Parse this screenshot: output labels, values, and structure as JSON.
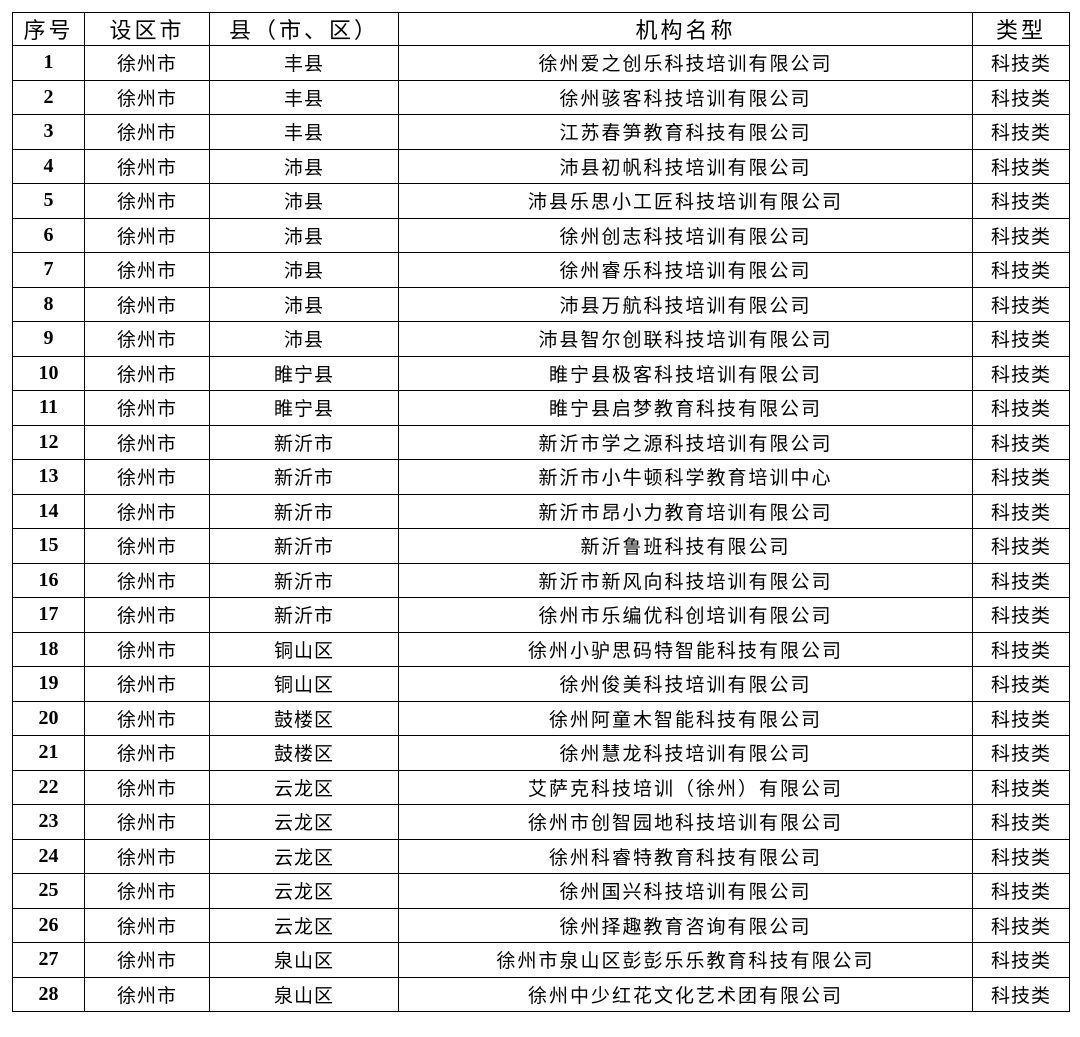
{
  "table": {
    "headers": [
      "序号",
      "设区市",
      "县（市、区）",
      "机构名称",
      "类型"
    ],
    "rows": [
      [
        "1",
        "徐州市",
        "丰县",
        "徐州爱之创乐科技培训有限公司",
        "科技类"
      ],
      [
        "2",
        "徐州市",
        "丰县",
        "徐州骇客科技培训有限公司",
        "科技类"
      ],
      [
        "3",
        "徐州市",
        "丰县",
        "江苏春笋教育科技有限公司",
        "科技类"
      ],
      [
        "4",
        "徐州市",
        "沛县",
        "沛县初帆科技培训有限公司",
        "科技类"
      ],
      [
        "5",
        "徐州市",
        "沛县",
        "沛县乐思小工匠科技培训有限公司",
        "科技类"
      ],
      [
        "6",
        "徐州市",
        "沛县",
        "徐州创志科技培训有限公司",
        "科技类"
      ],
      [
        "7",
        "徐州市",
        "沛县",
        "徐州睿乐科技培训有限公司",
        "科技类"
      ],
      [
        "8",
        "徐州市",
        "沛县",
        "沛县万航科技培训有限公司",
        "科技类"
      ],
      [
        "9",
        "徐州市",
        "沛县",
        "沛县智尔创联科技培训有限公司",
        "科技类"
      ],
      [
        "10",
        "徐州市",
        "睢宁县",
        "睢宁县极客科技培训有限公司",
        "科技类"
      ],
      [
        "11",
        "徐州市",
        "睢宁县",
        "睢宁县启梦教育科技有限公司",
        "科技类"
      ],
      [
        "12",
        "徐州市",
        "新沂市",
        "新沂市学之源科技培训有限公司",
        "科技类"
      ],
      [
        "13",
        "徐州市",
        "新沂市",
        "新沂市小牛顿科学教育培训中心",
        "科技类"
      ],
      [
        "14",
        "徐州市",
        "新沂市",
        "新沂市昂小力教育培训有限公司",
        "科技类"
      ],
      [
        "15",
        "徐州市",
        "新沂市",
        "新沂鲁班科技有限公司",
        "科技类"
      ],
      [
        "16",
        "徐州市",
        "新沂市",
        "新沂市新风向科技培训有限公司",
        "科技类"
      ],
      [
        "17",
        "徐州市",
        "新沂市",
        "徐州市乐编优科创培训有限公司",
        "科技类"
      ],
      [
        "18",
        "徐州市",
        "铜山区",
        "徐州小驴思码特智能科技有限公司",
        "科技类"
      ],
      [
        "19",
        "徐州市",
        "铜山区",
        "徐州俊美科技培训有限公司",
        "科技类"
      ],
      [
        "20",
        "徐州市",
        "鼓楼区",
        "徐州阿童木智能科技有限公司",
        "科技类"
      ],
      [
        "21",
        "徐州市",
        "鼓楼区",
        "徐州慧龙科技培训有限公司",
        "科技类"
      ],
      [
        "22",
        "徐州市",
        "云龙区",
        "艾萨克科技培训（徐州）有限公司",
        "科技类"
      ],
      [
        "23",
        "徐州市",
        "云龙区",
        "徐州市创智园地科技培训有限公司",
        "科技类"
      ],
      [
        "24",
        "徐州市",
        "云龙区",
        "徐州科睿特教育科技有限公司",
        "科技类"
      ],
      [
        "25",
        "徐州市",
        "云龙区",
        "徐州国兴科技培训有限公司",
        "科技类"
      ],
      [
        "26",
        "徐州市",
        "云龙区",
        "徐州择趣教育咨询有限公司",
        "科技类"
      ],
      [
        "27",
        "徐州市",
        "泉山区",
        "徐州市泉山区彭彭乐乐教育科技有限公司",
        "科技类"
      ],
      [
        "28",
        "徐州市",
        "泉山区",
        "徐州中少红花文化艺术团有限公司",
        "科技类"
      ]
    ]
  }
}
